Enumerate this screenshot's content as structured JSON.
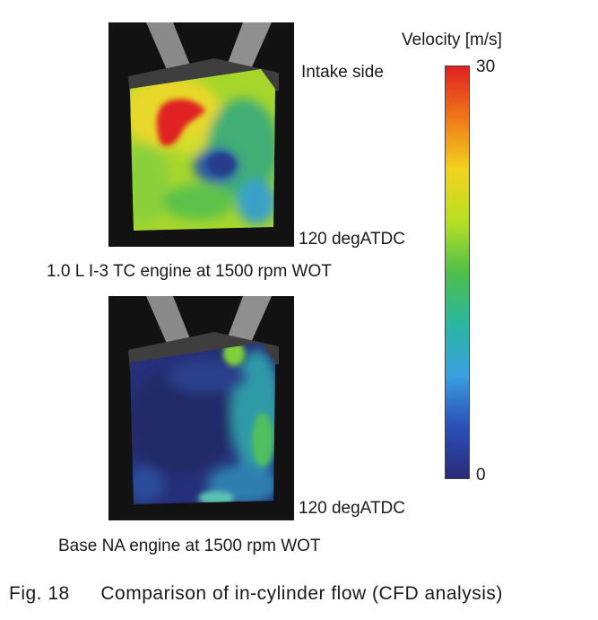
{
  "legend": {
    "title": "Velocity [m/s]",
    "max_label": "30",
    "min_label": "0",
    "min_value": 0,
    "max_value": 30,
    "colors": [
      "#e02020",
      "#f07818",
      "#f2d21e",
      "#b8e022",
      "#4fbf4a",
      "#2ab8a0",
      "#3aa0e0",
      "#2a50b8",
      "#2a2a78"
    ]
  },
  "panel_top": {
    "side_label": "Intake side",
    "crank_label": "120 degATDC",
    "engine_label": "1.0 L I-3 TC engine at 1500 rpm WOT"
  },
  "panel_bottom": {
    "crank_label": "120 degATDC",
    "engine_label": "Base NA engine at 1500 rpm WOT"
  },
  "caption": {
    "fig_number": "Fig. 18",
    "text": "Comparison of in-cylinder flow (CFD analysis)"
  }
}
